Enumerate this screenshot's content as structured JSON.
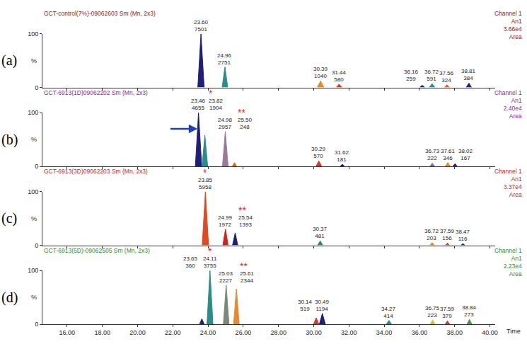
{
  "chart_data": [
    {
      "type": "area",
      "panel_label": "(a)",
      "title": "GCT-control(7%)-09062603 Sm (Mn, 2x3)",
      "color": "#8b1a1a",
      "header": [
        "Channel 1",
        "An1",
        "3.66e4",
        "Area"
      ],
      "ylabel": "%",
      "tick_labels": "y",
      "grid": false,
      "xlim": [
        14.6,
        40.3
      ],
      "xticks": [
        {
          "value": 16,
          "label": "16.00"
        },
        {
          "value": 18,
          "label": "18.00"
        },
        {
          "value": 20,
          "label": "20.00"
        },
        {
          "value": 22,
          "label": "22.00"
        },
        {
          "value": 24,
          "label": "24.00"
        },
        {
          "value": 26,
          "label": "26.00"
        },
        {
          "value": 28,
          "label": "28.00"
        },
        {
          "value": 30,
          "label": "30.00"
        },
        {
          "value": 32,
          "label": "32.00"
        },
        {
          "value": 34,
          "label": "34.00"
        },
        {
          "value": 36,
          "label": "36.00"
        },
        {
          "value": 38,
          "label": "38.00"
        },
        {
          "value": 40,
          "label": "40.00"
        }
      ],
      "ylim": [
        0,
        100
      ],
      "yticks": [
        0,
        100
      ],
      "series": [
        {
          "label": "23.60",
          "area": 7501,
          "color": "#1f1f7a",
          "x": [
            23.42,
            23.6,
            23.78
          ],
          "values": [
            0,
            100,
            0
          ]
        },
        {
          "label": "24.96",
          "area": 2751,
          "color": "#2b8c8c",
          "x": [
            24.8,
            24.96,
            25.12
          ],
          "values": [
            0,
            38,
            0
          ]
        },
        {
          "label": "30.39",
          "area": 1040,
          "color": "#e8892c",
          "x": [
            30.2,
            30.39,
            30.58
          ],
          "values": [
            0,
            12,
            0
          ]
        },
        {
          "label": "31.44",
          "area": 580,
          "color": "#d43a2a",
          "x": [
            31.28,
            31.44,
            31.6
          ],
          "values": [
            0,
            6,
            0
          ]
        },
        {
          "label": "36.16",
          "area": 259,
          "color": "#1f1f7a",
          "x": [
            36.02,
            36.16,
            36.3
          ],
          "values": [
            0,
            4,
            0
          ]
        },
        {
          "label": "36.72",
          "area": 591,
          "color": "#2b8c8c",
          "x": [
            36.56,
            36.72,
            36.88
          ],
          "values": [
            0,
            7,
            0
          ]
        },
        {
          "label": "37.56",
          "area": 324,
          "color": "#e0602a",
          "x": [
            37.42,
            37.56,
            37.7
          ],
          "values": [
            0,
            5,
            0
          ]
        },
        {
          "label": "38.81",
          "area": 384,
          "color": "#1f1f7a",
          "x": [
            38.66,
            38.81,
            38.96
          ],
          "values": [
            0,
            8,
            0
          ]
        }
      ],
      "annotations": []
    },
    {
      "type": "area",
      "panel_label": "(b)",
      "title": "GCT-6913(1D)09062202 Sm (Mn, 2x3)",
      "color": "#8b2a8b",
      "header": [
        "Channel 1",
        "An1",
        "2.40e4",
        "Area"
      ],
      "ylabel": "%",
      "tick_labels": "y",
      "grid": false,
      "xlim": [
        14.6,
        40.3
      ],
      "xticks": [
        {
          "value": 16,
          "label": "16.00"
        },
        {
          "value": 18,
          "label": "18.00"
        },
        {
          "value": 20,
          "label": "20.00"
        },
        {
          "value": 22,
          "label": "22.00"
        },
        {
          "value": 24,
          "label": "24.00"
        },
        {
          "value": 26,
          "label": "26.00"
        },
        {
          "value": 28,
          "label": "28.00"
        },
        {
          "value": 30,
          "label": "30.00"
        },
        {
          "value": 32,
          "label": "32.00"
        },
        {
          "value": 34,
          "label": "34.00"
        },
        {
          "value": 36,
          "label": "36.00"
        },
        {
          "value": 38,
          "label": "38.00"
        },
        {
          "value": 40,
          "label": "40.00"
        }
      ],
      "ylim": [
        0,
        100
      ],
      "yticks": [
        0,
        100
      ],
      "series": [
        {
          "label": "23.46",
          "area": 4655,
          "color": "#1f1f7a",
          "x": [
            23.28,
            23.46,
            23.64
          ],
          "values": [
            0,
            100,
            0
          ],
          "marker": "arrow"
        },
        {
          "label": "23.82",
          "area": 1904,
          "color": "#2b8c8c",
          "x": [
            23.66,
            23.82,
            23.98
          ],
          "values": [
            0,
            58,
            0
          ]
        },
        {
          "label": "24.98",
          "area": 2957,
          "color": "#9a7a9a",
          "x": [
            24.82,
            24.98,
            25.14
          ],
          "values": [
            0,
            65,
            0
          ]
        },
        {
          "label": "25.50",
          "area": 248,
          "color": "#e0602a",
          "x": [
            25.38,
            25.5,
            25.62
          ],
          "values": [
            0,
            7,
            0
          ]
        },
        {
          "label": "30.29",
          "area": 570,
          "color": "#d43a2a",
          "x": [
            30.13,
            30.29,
            30.45
          ],
          "values": [
            0,
            10,
            0
          ]
        },
        {
          "label": "31.62",
          "area": 181,
          "color": "#1f1f7a",
          "x": [
            31.5,
            31.62,
            31.74
          ],
          "values": [
            0,
            4,
            0
          ]
        },
        {
          "label": "36.73",
          "area": 222,
          "color": "#8a6aa8",
          "x": [
            36.6,
            36.73,
            36.86
          ],
          "values": [
            0,
            6,
            0
          ]
        },
        {
          "label": "37.61",
          "area": 346,
          "color": "#e8892c",
          "x": [
            37.47,
            37.61,
            37.75
          ],
          "values": [
            0,
            7,
            0
          ]
        },
        {
          "label": "38.02",
          "area": 167,
          "color": "#1f1f7a",
          "x": [
            37.9,
            38.02,
            38.14
          ],
          "values": [
            0,
            5,
            0
          ]
        }
      ],
      "annotations": [
        {
          "text": "*",
          "x": 23.82
        },
        {
          "text": "**",
          "x": 25.5
        }
      ]
    },
    {
      "type": "area",
      "panel_label": "(c)",
      "title": "GCT-6913(3D)09062203 Sm (Mn, 2x3)",
      "color": "#c0281e",
      "header": [
        "Channel 1",
        "An1",
        "3.37e4",
        "Area"
      ],
      "ylabel": "%",
      "tick_labels": "y",
      "grid": false,
      "xlim": [
        14.6,
        40.3
      ],
      "xticks": [
        {
          "value": 16,
          "label": "16.00"
        },
        {
          "value": 18,
          "label": "18.00"
        },
        {
          "value": 20,
          "label": "20.00"
        },
        {
          "value": 22,
          "label": "22.00"
        },
        {
          "value": 24,
          "label": "24.00"
        },
        {
          "value": 26,
          "label": "26.00"
        },
        {
          "value": 28,
          "label": "28.00"
        },
        {
          "value": 30,
          "label": "30.00"
        },
        {
          "value": 32,
          "label": "32.00"
        },
        {
          "value": 34,
          "label": "34.00"
        },
        {
          "value": 36,
          "label": "36.00"
        },
        {
          "value": 38,
          "label": "38.00"
        },
        {
          "value": 40,
          "label": "40.00"
        }
      ],
      "ylim": [
        0,
        100
      ],
      "yticks": [
        0,
        100
      ],
      "series": [
        {
          "label": "23.85",
          "area": 5958,
          "color": "#e04a20",
          "x": [
            23.67,
            23.85,
            24.03
          ],
          "values": [
            0,
            100,
            0
          ]
        },
        {
          "label": "24.99",
          "area": 1972,
          "color": "#d42020",
          "x": [
            24.84,
            24.99,
            25.14
          ],
          "values": [
            0,
            30,
            0
          ]
        },
        {
          "label": "25.54",
          "area": 1393,
          "color": "#1f1f7a",
          "x": [
            25.39,
            25.54,
            25.69
          ],
          "values": [
            0,
            23,
            0
          ]
        },
        {
          "label": "30.37",
          "area": 481,
          "color": "#2a8a6a",
          "x": [
            30.22,
            30.37,
            30.52
          ],
          "values": [
            0,
            8,
            0
          ]
        },
        {
          "label": "36.72",
          "area": 203,
          "color": "#e8892c",
          "x": [
            36.59,
            36.72,
            36.85
          ],
          "values": [
            0,
            5,
            0
          ]
        },
        {
          "label": "37.59",
          "area": 156,
          "color": "#d43a2a",
          "x": [
            37.47,
            37.59,
            37.71
          ],
          "values": [
            0,
            4,
            0
          ]
        },
        {
          "label": "38.47",
          "area": 116,
          "color": "#1f1f7a",
          "x": [
            38.36,
            38.47,
            38.58
          ],
          "values": [
            0,
            3,
            0
          ]
        }
      ],
      "annotations": [
        {
          "text": "*",
          "x": 23.85
        },
        {
          "text": "**",
          "x": 25.54
        }
      ]
    },
    {
      "type": "area",
      "panel_label": "(d)",
      "title": "GCT-6913(5D)-09062505 Sm (Mn, 2x3)",
      "color": "#2e8b2e",
      "header": [
        "Channel 1",
        "An1",
        "2.23e4",
        "Area"
      ],
      "ylabel": "%",
      "xlabel": "Time",
      "grid": false,
      "xlim": [
        14.6,
        40.3
      ],
      "xticks": [
        {
          "value": 16,
          "label": "16.00"
        },
        {
          "value": 18,
          "label": "18.00"
        },
        {
          "value": 20,
          "label": "20.00"
        },
        {
          "value": 22,
          "label": "22.00"
        },
        {
          "value": 24,
          "label": "24.00"
        },
        {
          "value": 26,
          "label": "26.00"
        },
        {
          "value": 28,
          "label": "28.00"
        },
        {
          "value": 30,
          "label": "30.00"
        },
        {
          "value": 32,
          "label": "32.00"
        },
        {
          "value": 34,
          "label": "34.00"
        },
        {
          "value": 36,
          "label": "36.00"
        },
        {
          "value": 38,
          "label": "38.00"
        },
        {
          "value": 40,
          "label": "40.00"
        }
      ],
      "ylim": [
        0,
        100
      ],
      "yticks": [
        0,
        100
      ],
      "series": [
        {
          "label": "23.65",
          "area": 360,
          "color": "#1f1f7a",
          "x": [
            23.52,
            23.65,
            23.78
          ],
          "values": [
            0,
            10,
            0
          ]
        },
        {
          "label": "24.11",
          "area": 3755,
          "color": "#2b8c8c",
          "x": [
            23.94,
            24.11,
            24.28
          ],
          "values": [
            0,
            100,
            0
          ]
        },
        {
          "label": "25.03",
          "area": 2227,
          "color": "#7a8a7a",
          "x": [
            24.87,
            25.03,
            25.19
          ],
          "values": [
            0,
            73,
            0
          ]
        },
        {
          "label": "25.61",
          "area": 2344,
          "color": "#e8892c",
          "x": [
            25.45,
            25.61,
            25.77
          ],
          "values": [
            0,
            66,
            0
          ]
        },
        {
          "label": "30.14",
          "area": 519,
          "color": "#d43a2a",
          "x": [
            29.99,
            30.14,
            30.29
          ],
          "values": [
            0,
            12,
            0
          ]
        },
        {
          "label": "30.49",
          "area": 1194,
          "color": "#1f1f7a",
          "x": [
            30.32,
            30.49,
            30.66
          ],
          "values": [
            0,
            20,
            0
          ]
        },
        {
          "label": "34.27",
          "area": 414,
          "color": "#2b8c8c",
          "x": [
            34.12,
            34.27,
            34.42
          ],
          "values": [
            0,
            7,
            0
          ]
        },
        {
          "label": "36.75",
          "area": 223,
          "color": "#d4c030",
          "x": [
            36.62,
            36.75,
            36.88
          ],
          "values": [
            0,
            8,
            0
          ]
        },
        {
          "label": "37.59",
          "area": 379,
          "color": "#d43a2a",
          "x": [
            37.46,
            37.59,
            37.72
          ],
          "values": [
            0,
            6,
            0
          ]
        },
        {
          "label": "38.84",
          "area": 273,
          "color": "#4a9a4a",
          "x": [
            38.7,
            38.84,
            38.98
          ],
          "values": [
            0,
            9,
            0
          ]
        }
      ],
      "annotations": [
        {
          "text": "*",
          "x": 24.11
        },
        {
          "text": "**",
          "x": 25.61
        }
      ]
    }
  ]
}
